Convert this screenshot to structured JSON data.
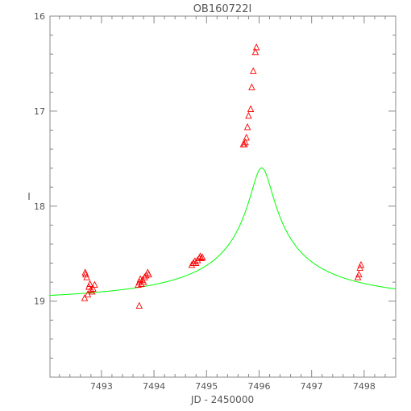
{
  "chart_data": {
    "type": "scatter",
    "title": "OB160722I",
    "xlabel": "JD - 2450000",
    "ylabel": "I",
    "xlim": [
      7492.02,
      7498.6
    ],
    "ylim": [
      19.8,
      16.0
    ],
    "y_inverted": true,
    "grid": false,
    "x_ticks": [
      7493,
      7494,
      7495,
      7496,
      7497,
      7498
    ],
    "x_tick_labels": [
      "7493",
      "7494",
      "7495",
      "7496",
      "7497",
      "7498"
    ],
    "y_ticks": [
      16,
      17,
      18,
      19
    ],
    "y_tick_labels": [
      "16",
      "17",
      "18",
      "19"
    ],
    "series": [
      {
        "kind": "points",
        "marker": "triangle",
        "color": "#ff0000",
        "x": [
          7492.68,
          7492.7,
          7492.72,
          7492.74,
          7492.76,
          7492.78,
          7492.8,
          7492.82,
          7492.84,
          7492.87,
          7492.69,
          7493.7,
          7493.72,
          7493.74,
          7493.76,
          7493.78,
          7493.8,
          7493.82,
          7493.85,
          7493.88,
          7493.9,
          7493.72,
          7494.72,
          7494.75,
          7494.78,
          7494.8,
          7494.83,
          7494.86,
          7494.88,
          7494.9,
          7494.92,
          7495.7,
          7495.72,
          7495.74,
          7495.76,
          7495.78,
          7495.8,
          7495.84,
          7495.86,
          7495.89,
          7495.93,
          7495.95,
          7497.88,
          7497.9,
          7497.92,
          7497.94
        ],
        "y": [
          18.97,
          18.72,
          18.75,
          18.93,
          18.85,
          18.82,
          18.88,
          18.9,
          18.87,
          18.83,
          18.7,
          18.83,
          18.8,
          18.77,
          18.82,
          18.78,
          18.8,
          18.75,
          18.73,
          18.7,
          18.72,
          19.05,
          18.62,
          18.6,
          18.58,
          18.6,
          18.57,
          18.55,
          18.53,
          18.55,
          18.54,
          17.35,
          17.35,
          17.33,
          17.28,
          17.17,
          17.05,
          16.98,
          16.75,
          16.58,
          16.38,
          16.33,
          18.75,
          18.72,
          18.65,
          18.62
        ]
      },
      {
        "kind": "line",
        "color": "#00ff00",
        "model": "point-lens",
        "t0": 7496.05,
        "u0": 0.04,
        "tE": 5.0,
        "fs": 0.11,
        "I_base": 19.0
      }
    ]
  }
}
